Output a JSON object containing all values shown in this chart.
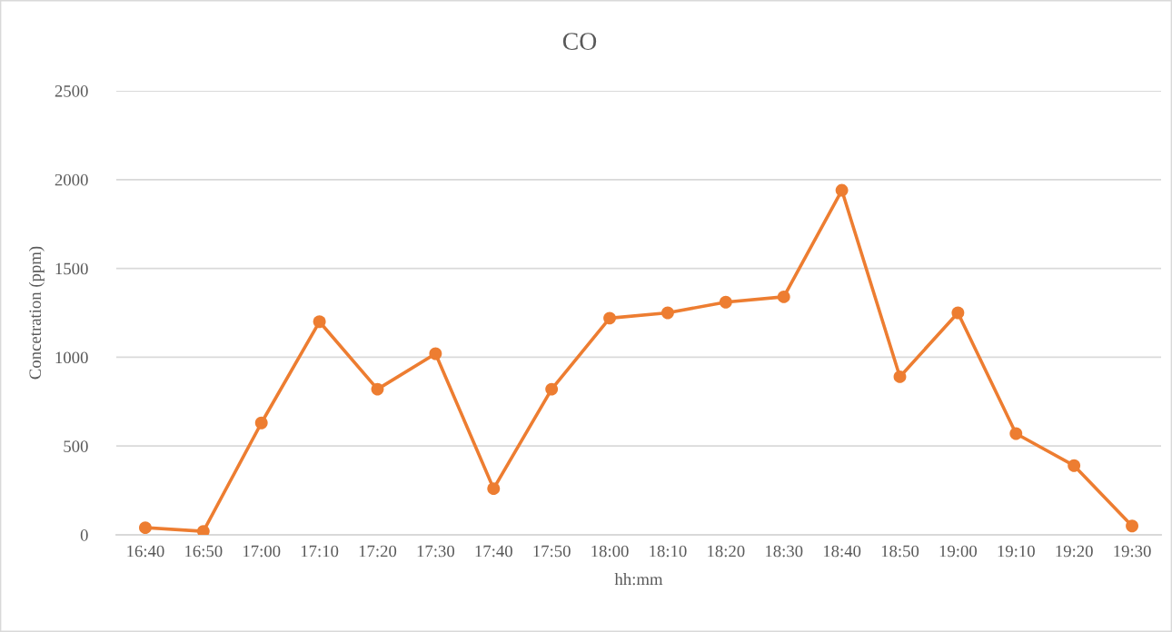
{
  "chart_data": {
    "type": "line",
    "title": "CO",
    "xlabel": "hh:mm",
    "ylabel": "Concetration (ppm)",
    "categories": [
      "16:40",
      "16:50",
      "17:00",
      "17:10",
      "17:20",
      "17:30",
      "17:40",
      "17:50",
      "18:00",
      "18:10",
      "18:20",
      "18:30",
      "18:40",
      "18:50",
      "19:00",
      "19:10",
      "19:20",
      "19:30"
    ],
    "series": [
      {
        "color": "#ed7d31",
        "values": [
          40,
          20,
          630,
          1200,
          820,
          1020,
          260,
          820,
          1220,
          1250,
          1310,
          1340,
          1940,
          890,
          1250,
          570,
          390,
          50
        ]
      }
    ],
    "ylim": [
      0,
      2500
    ],
    "yticks": [
      0,
      500,
      1000,
      1500,
      2000,
      2500
    ],
    "grid": "y",
    "legend": false,
    "marker": "circle",
    "line_style": "solid"
  }
}
